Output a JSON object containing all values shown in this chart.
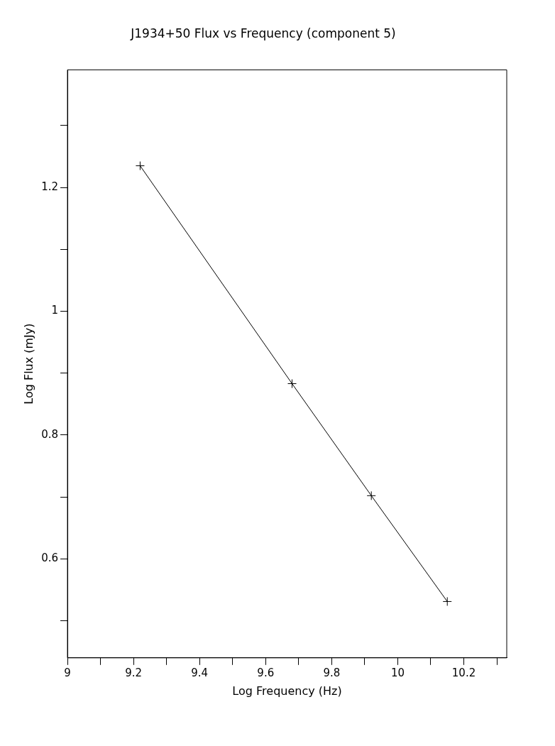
{
  "chart_data": {
    "type": "line",
    "title": "J1934+50 Flux vs Frequency (component 5)",
    "xlabel": "Log Frequency (Hz)",
    "ylabel": "Log Flux (mJy)",
    "x": [
      9.22,
      9.68,
      9.92,
      10.15
    ],
    "series": [
      {
        "color": "#000000",
        "values": [
          1.235,
          0.883,
          0.702,
          0.531
        ]
      }
    ],
    "xlim": [
      9,
      10.33
    ],
    "xticks": [
      9,
      {
        "value": 9.1,
        "label": null
      },
      9.2,
      {
        "value": 9.3,
        "label": null
      },
      9.4,
      {
        "value": 9.5,
        "label": null
      },
      9.6,
      {
        "value": 9.7,
        "label": null
      },
      9.8,
      {
        "value": 9.9,
        "label": null
      },
      10,
      {
        "value": 10.1,
        "label": null
      },
      10.2,
      {
        "value": 10.3,
        "label": null
      }
    ],
    "ylim": [
      0.44,
      1.39
    ],
    "yticks": [
      {
        "value": 0.5,
        "label": null
      },
      0.6,
      {
        "value": 0.7,
        "label": null
      },
      0.8,
      {
        "value": 0.9,
        "label": null
      },
      1,
      {
        "value": 1.1,
        "label": null
      },
      1.2,
      {
        "value": 1.3,
        "label": null
      }
    ],
    "grid": false,
    "legend": false,
    "marker": "cross",
    "line_style": "solid"
  }
}
